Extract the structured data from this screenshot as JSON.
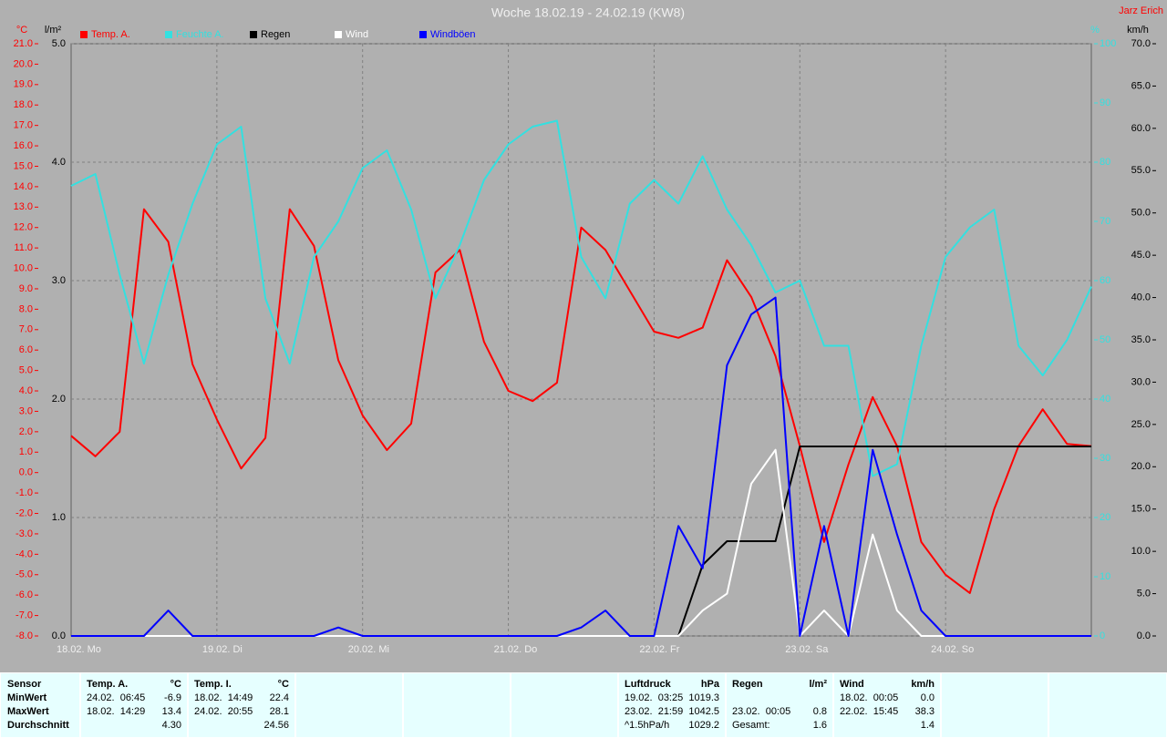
{
  "chart_data": {
    "type": "line",
    "title": "Woche 18.02.19 - 24.02.19 (KW8)",
    "author": "Jarz Erich",
    "y_unit": "°C",
    "y2_unit": "l/m²",
    "y3_unit": "%",
    "y4_unit": "km/h",
    "categories": [
      "18.02. Mo",
      null,
      null,
      null,
      null,
      null,
      "19.02. Di",
      null,
      null,
      null,
      null,
      null,
      "20.02. Mi",
      null,
      null,
      null,
      null,
      null,
      "21.02. Do",
      null,
      null,
      null,
      null,
      null,
      "22.02. Fr",
      null,
      null,
      null,
      null,
      null,
      "23.02. Sa",
      null,
      null,
      null,
      null,
      null,
      "24.02. So",
      null,
      null,
      null,
      null,
      null,
      null
    ],
    "series": [
      {
        "name": "Temp. A.",
        "color": "#ff0000",
        "axis": "y",
        "values": [
          1.8,
          0.8,
          2.0,
          12.9,
          11.3,
          5.3,
          2.6,
          0.2,
          1.7,
          12.9,
          11.1,
          5.5,
          2.8,
          1.1,
          2.4,
          9.8,
          10.9,
          6.4,
          4.0,
          3.5,
          4.4,
          12.0,
          10.9,
          8.9,
          6.9,
          6.6,
          7.1,
          10.4,
          8.6,
          5.7,
          1.3,
          -3.4,
          0.4,
          3.7,
          1.3,
          -3.4,
          -5.0,
          -5.9,
          -1.8,
          1.3,
          3.1,
          1.4,
          1.3
        ]
      },
      {
        "name": "Feuchte A.",
        "color": "#33e0e0",
        "axis": "y3",
        "values": [
          76,
          78,
          61,
          46,
          61,
          73,
          83,
          86,
          57,
          46,
          64,
          70,
          79,
          82,
          72,
          57,
          66,
          77,
          83,
          86,
          87,
          64,
          57,
          73,
          77,
          73,
          81,
          72,
          66,
          58,
          60,
          49,
          49,
          27,
          29,
          49,
          64,
          69,
          72,
          49,
          44,
          50,
          59
        ]
      },
      {
        "name": "Regen",
        "color": "#000000",
        "axis": "y2",
        "values": [
          0,
          0,
          0,
          0,
          0,
          0,
          0,
          0,
          0,
          0,
          0,
          0,
          0,
          0,
          0,
          0,
          0,
          0,
          0,
          0,
          0,
          0,
          0,
          0,
          0,
          0,
          0.6,
          0.8,
          0.8,
          0.8,
          1.6,
          1.6,
          1.6,
          1.6,
          1.6,
          1.6,
          1.6,
          1.6,
          1.6,
          1.6,
          1.6,
          1.6,
          1.6
        ]
      },
      {
        "name": "Wind",
        "color": "#ffffff",
        "axis": "y4",
        "values": [
          0,
          0,
          0,
          0,
          0,
          0,
          0,
          0,
          0,
          0,
          0,
          0,
          0,
          0,
          0,
          0,
          0,
          0,
          0,
          0,
          0,
          0,
          0,
          0,
          0,
          0,
          3,
          5,
          18,
          22,
          0,
          3,
          0,
          12,
          3,
          0,
          0,
          0,
          0,
          0,
          0,
          0,
          0
        ]
      },
      {
        "name": "Windböen",
        "color": "#0000ff",
        "axis": "y4",
        "values": [
          0,
          0,
          0,
          0,
          3,
          0,
          0,
          0,
          0,
          0,
          0,
          1,
          0,
          0,
          0,
          0,
          0,
          0,
          0,
          0,
          0,
          1,
          3,
          0,
          0,
          13,
          8,
          32,
          38,
          40,
          0,
          13,
          0,
          22,
          12,
          3,
          0,
          0,
          0,
          0,
          0,
          0,
          0
        ]
      }
    ],
    "ylim": [
      -8,
      21
    ],
    "yticks": [
      {
        "value": -8,
        "label": "-8.0"
      },
      {
        "value": -7,
        "label": "-7.0"
      },
      {
        "value": -6,
        "label": "-6.0"
      },
      {
        "value": -5,
        "label": "-5.0"
      },
      {
        "value": -4,
        "label": "-4.0"
      },
      {
        "value": -3,
        "label": "-3.0"
      },
      {
        "value": -2,
        "label": "-2.0"
      },
      {
        "value": -1,
        "label": "-1.0"
      },
      {
        "value": 0,
        "label": "0.0"
      },
      {
        "value": 1,
        "label": "1.0"
      },
      {
        "value": 2,
        "label": "2.0"
      },
      {
        "value": 3,
        "label": "3.0"
      },
      {
        "value": 4,
        "label": "4.0"
      },
      {
        "value": 5,
        "label": "5.0"
      },
      {
        "value": 6,
        "label": "6.0"
      },
      {
        "value": 7,
        "label": "7.0"
      },
      {
        "value": 8,
        "label": "8.0"
      },
      {
        "value": 9,
        "label": "9.0"
      },
      {
        "value": 10,
        "label": "10.0"
      },
      {
        "value": 11,
        "label": "11.0"
      },
      {
        "value": 12,
        "label": "12.0"
      },
      {
        "value": 13,
        "label": "13.0"
      },
      {
        "value": 14,
        "label": "14.0"
      },
      {
        "value": 15,
        "label": "15.0"
      },
      {
        "value": 16,
        "label": "16.0"
      },
      {
        "value": 17,
        "label": "17.0"
      },
      {
        "value": 18,
        "label": "18.0"
      },
      {
        "value": 19,
        "label": "19.0"
      },
      {
        "value": 20,
        "label": "20.0"
      },
      {
        "value": 21,
        "label": "21.0"
      }
    ],
    "y2lim": [
      0,
      5
    ],
    "y2ticks": [
      {
        "value": 0,
        "label": "0.0"
      },
      {
        "value": 1,
        "label": "1.0"
      },
      {
        "value": 2,
        "label": "2.0"
      },
      {
        "value": 3,
        "label": "3.0"
      },
      {
        "value": 4,
        "label": "4.0"
      },
      {
        "value": 5,
        "label": "5.0"
      }
    ],
    "y3lim": [
      0,
      100
    ],
    "y3ticks": [
      0,
      10,
      20,
      30,
      40,
      50,
      60,
      70,
      80,
      90,
      100
    ],
    "y4lim": [
      0,
      70
    ],
    "y4ticks": [
      {
        "value": 0,
        "label": "0.0"
      },
      {
        "value": 5,
        "label": "5.0"
      },
      {
        "value": 10,
        "label": "10.0"
      },
      {
        "value": 15,
        "label": "15.0"
      },
      {
        "value": 20,
        "label": "20.0"
      },
      {
        "value": 25,
        "label": "25.0"
      },
      {
        "value": 30,
        "label": "30.0"
      },
      {
        "value": 35,
        "label": "35.0"
      },
      {
        "value": 40,
        "label": "40.0"
      },
      {
        "value": 45,
        "label": "45.0"
      },
      {
        "value": 50,
        "label": "50.0"
      },
      {
        "value": 55,
        "label": "55.0"
      },
      {
        "value": 60,
        "label": "60.0"
      },
      {
        "value": 65,
        "label": "65.0"
      },
      {
        "value": 70,
        "label": "70.0"
      }
    ],
    "grid": true
  },
  "table": {
    "row_labels": [
      "Sensor",
      "MinWert",
      "MaxWert",
      "Durchschnitt"
    ],
    "columns": [
      {
        "name": "Temp. A.",
        "unit": "°C",
        "cells": [
          [
            "24.02.  06:45",
            "-6.9"
          ],
          [
            "18.02.  14:29",
            "13.4"
          ],
          [
            null,
            "4.30"
          ]
        ]
      },
      {
        "name": "Temp. I.",
        "unit": "°C",
        "cells": [
          [
            "18.02.  14:49",
            "22.4"
          ],
          [
            "24.02.  20:55",
            "28.1"
          ],
          [
            null,
            "24.56"
          ]
        ]
      },
      {
        "name": "Luftdruck",
        "unit": "hPa",
        "cells": [
          [
            "19.02.  03:25",
            "1019.3"
          ],
          [
            "23.02.  21:59",
            "1042.5"
          ],
          [
            "^1.5hPa/h",
            "1029.2"
          ]
        ]
      },
      {
        "name": "Regen",
        "unit": "l/m²",
        "cells": [
          null,
          [
            "23.02.  00:05",
            "0.8"
          ],
          [
            "Gesamt:",
            "1.6"
          ]
        ]
      },
      {
        "name": "Wind",
        "unit": "km/h",
        "cells": [
          [
            "18.02.  00:05",
            "0.0"
          ],
          [
            "22.02.  15:45",
            "38.3"
          ],
          [
            null,
            "1.4"
          ]
        ]
      }
    ]
  }
}
